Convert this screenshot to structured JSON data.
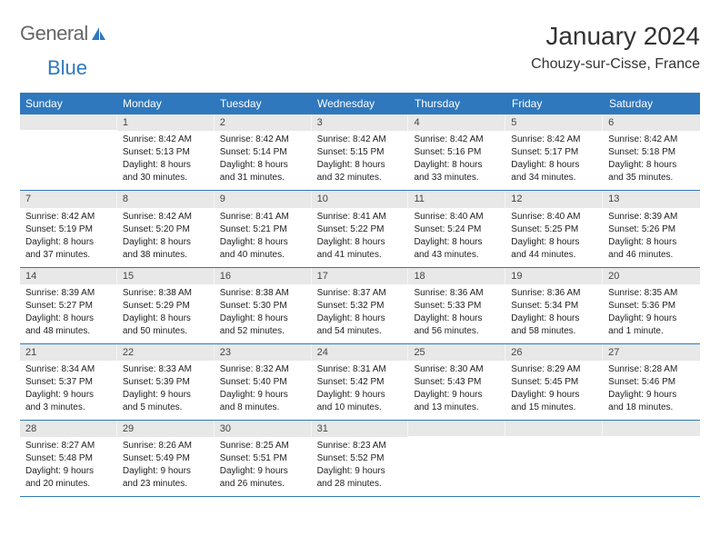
{
  "logo": {
    "part1": "General",
    "part2": "Blue"
  },
  "title": "January 2024",
  "location": "Chouzy-sur-Cisse, France",
  "colors": {
    "header_bg": "#2f78bd",
    "header_text": "#ffffff",
    "daynum_bg": "#e8e8e8",
    "row_divider": "#2f78bd",
    "text": "#222222",
    "page_bg": "#ffffff"
  },
  "weekdays": [
    "Sunday",
    "Monday",
    "Tuesday",
    "Wednesday",
    "Thursday",
    "Friday",
    "Saturday"
  ],
  "weeks": [
    [
      null,
      {
        "n": "1",
        "sunrise": "Sunrise: 8:42 AM",
        "sunset": "Sunset: 5:13 PM",
        "day1": "Daylight: 8 hours",
        "day2": "and 30 minutes."
      },
      {
        "n": "2",
        "sunrise": "Sunrise: 8:42 AM",
        "sunset": "Sunset: 5:14 PM",
        "day1": "Daylight: 8 hours",
        "day2": "and 31 minutes."
      },
      {
        "n": "3",
        "sunrise": "Sunrise: 8:42 AM",
        "sunset": "Sunset: 5:15 PM",
        "day1": "Daylight: 8 hours",
        "day2": "and 32 minutes."
      },
      {
        "n": "4",
        "sunrise": "Sunrise: 8:42 AM",
        "sunset": "Sunset: 5:16 PM",
        "day1": "Daylight: 8 hours",
        "day2": "and 33 minutes."
      },
      {
        "n": "5",
        "sunrise": "Sunrise: 8:42 AM",
        "sunset": "Sunset: 5:17 PM",
        "day1": "Daylight: 8 hours",
        "day2": "and 34 minutes."
      },
      {
        "n": "6",
        "sunrise": "Sunrise: 8:42 AM",
        "sunset": "Sunset: 5:18 PM",
        "day1": "Daylight: 8 hours",
        "day2": "and 35 minutes."
      }
    ],
    [
      {
        "n": "7",
        "sunrise": "Sunrise: 8:42 AM",
        "sunset": "Sunset: 5:19 PM",
        "day1": "Daylight: 8 hours",
        "day2": "and 37 minutes."
      },
      {
        "n": "8",
        "sunrise": "Sunrise: 8:42 AM",
        "sunset": "Sunset: 5:20 PM",
        "day1": "Daylight: 8 hours",
        "day2": "and 38 minutes."
      },
      {
        "n": "9",
        "sunrise": "Sunrise: 8:41 AM",
        "sunset": "Sunset: 5:21 PM",
        "day1": "Daylight: 8 hours",
        "day2": "and 40 minutes."
      },
      {
        "n": "10",
        "sunrise": "Sunrise: 8:41 AM",
        "sunset": "Sunset: 5:22 PM",
        "day1": "Daylight: 8 hours",
        "day2": "and 41 minutes."
      },
      {
        "n": "11",
        "sunrise": "Sunrise: 8:40 AM",
        "sunset": "Sunset: 5:24 PM",
        "day1": "Daylight: 8 hours",
        "day2": "and 43 minutes."
      },
      {
        "n": "12",
        "sunrise": "Sunrise: 8:40 AM",
        "sunset": "Sunset: 5:25 PM",
        "day1": "Daylight: 8 hours",
        "day2": "and 44 minutes."
      },
      {
        "n": "13",
        "sunrise": "Sunrise: 8:39 AM",
        "sunset": "Sunset: 5:26 PM",
        "day1": "Daylight: 8 hours",
        "day2": "and 46 minutes."
      }
    ],
    [
      {
        "n": "14",
        "sunrise": "Sunrise: 8:39 AM",
        "sunset": "Sunset: 5:27 PM",
        "day1": "Daylight: 8 hours",
        "day2": "and 48 minutes."
      },
      {
        "n": "15",
        "sunrise": "Sunrise: 8:38 AM",
        "sunset": "Sunset: 5:29 PM",
        "day1": "Daylight: 8 hours",
        "day2": "and 50 minutes."
      },
      {
        "n": "16",
        "sunrise": "Sunrise: 8:38 AM",
        "sunset": "Sunset: 5:30 PM",
        "day1": "Daylight: 8 hours",
        "day2": "and 52 minutes."
      },
      {
        "n": "17",
        "sunrise": "Sunrise: 8:37 AM",
        "sunset": "Sunset: 5:32 PM",
        "day1": "Daylight: 8 hours",
        "day2": "and 54 minutes."
      },
      {
        "n": "18",
        "sunrise": "Sunrise: 8:36 AM",
        "sunset": "Sunset: 5:33 PM",
        "day1": "Daylight: 8 hours",
        "day2": "and 56 minutes."
      },
      {
        "n": "19",
        "sunrise": "Sunrise: 8:36 AM",
        "sunset": "Sunset: 5:34 PM",
        "day1": "Daylight: 8 hours",
        "day2": "and 58 minutes."
      },
      {
        "n": "20",
        "sunrise": "Sunrise: 8:35 AM",
        "sunset": "Sunset: 5:36 PM",
        "day1": "Daylight: 9 hours",
        "day2": "and 1 minute."
      }
    ],
    [
      {
        "n": "21",
        "sunrise": "Sunrise: 8:34 AM",
        "sunset": "Sunset: 5:37 PM",
        "day1": "Daylight: 9 hours",
        "day2": "and 3 minutes."
      },
      {
        "n": "22",
        "sunrise": "Sunrise: 8:33 AM",
        "sunset": "Sunset: 5:39 PM",
        "day1": "Daylight: 9 hours",
        "day2": "and 5 minutes."
      },
      {
        "n": "23",
        "sunrise": "Sunrise: 8:32 AM",
        "sunset": "Sunset: 5:40 PM",
        "day1": "Daylight: 9 hours",
        "day2": "and 8 minutes."
      },
      {
        "n": "24",
        "sunrise": "Sunrise: 8:31 AM",
        "sunset": "Sunset: 5:42 PM",
        "day1": "Daylight: 9 hours",
        "day2": "and 10 minutes."
      },
      {
        "n": "25",
        "sunrise": "Sunrise: 8:30 AM",
        "sunset": "Sunset: 5:43 PM",
        "day1": "Daylight: 9 hours",
        "day2": "and 13 minutes."
      },
      {
        "n": "26",
        "sunrise": "Sunrise: 8:29 AM",
        "sunset": "Sunset: 5:45 PM",
        "day1": "Daylight: 9 hours",
        "day2": "and 15 minutes."
      },
      {
        "n": "27",
        "sunrise": "Sunrise: 8:28 AM",
        "sunset": "Sunset: 5:46 PM",
        "day1": "Daylight: 9 hours",
        "day2": "and 18 minutes."
      }
    ],
    [
      {
        "n": "28",
        "sunrise": "Sunrise: 8:27 AM",
        "sunset": "Sunset: 5:48 PM",
        "day1": "Daylight: 9 hours",
        "day2": "and 20 minutes."
      },
      {
        "n": "29",
        "sunrise": "Sunrise: 8:26 AM",
        "sunset": "Sunset: 5:49 PM",
        "day1": "Daylight: 9 hours",
        "day2": "and 23 minutes."
      },
      {
        "n": "30",
        "sunrise": "Sunrise: 8:25 AM",
        "sunset": "Sunset: 5:51 PM",
        "day1": "Daylight: 9 hours",
        "day2": "and 26 minutes."
      },
      {
        "n": "31",
        "sunrise": "Sunrise: 8:23 AM",
        "sunset": "Sunset: 5:52 PM",
        "day1": "Daylight: 9 hours",
        "day2": "and 28 minutes."
      },
      null,
      null,
      null
    ]
  ]
}
